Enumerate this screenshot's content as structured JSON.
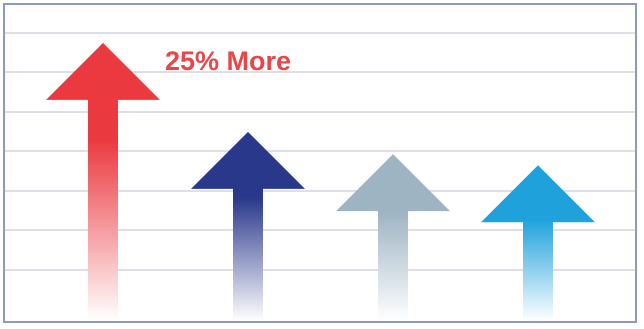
{
  "chart_data": {
    "type": "bar",
    "marker": "arrow",
    "title": "",
    "xlabel": "",
    "ylabel": "",
    "categories": [
      "",
      "",
      "",
      ""
    ],
    "values": [
      100,
      68,
      60,
      56
    ],
    "ylim": [
      0,
      110
    ],
    "grid": true,
    "annotations": [
      {
        "text": "25% More",
        "target_index": 0
      }
    ],
    "colors": {
      "frame": "#8d98c4",
      "grid": "#c9cbd8",
      "annotation": "#e8474a",
      "arrows": [
        "#ea3a40",
        "#2a388c",
        "#9eb4c3",
        "#1fa2dc"
      ]
    }
  }
}
